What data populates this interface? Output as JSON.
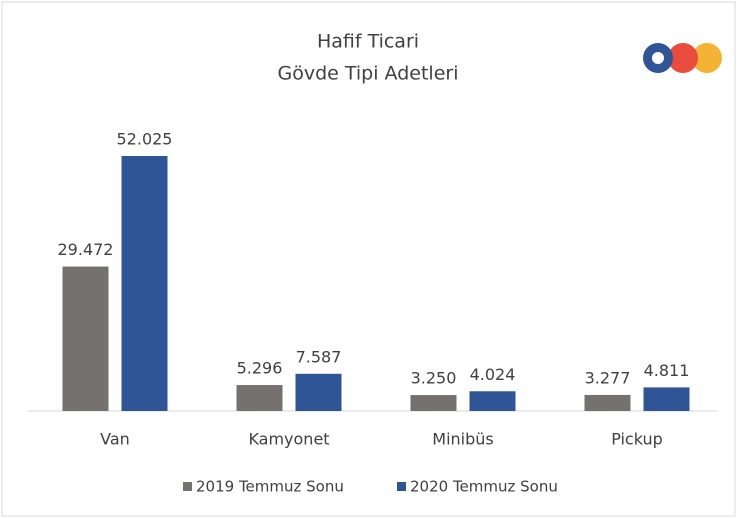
{
  "chart_data": {
    "type": "bar",
    "title": [
      "Hafif Ticari",
      "Gövde Tipi Adetleri"
    ],
    "categories": [
      "Van",
      "Kamyonet",
      "Minibüs",
      "Pickup"
    ],
    "series": [
      {
        "name": "2019 Temmuz Sonu",
        "color": "#767171",
        "values": [
          29472,
          5296,
          3250,
          3277
        ],
        "value_labels": [
          "29.472",
          "5.296",
          "3.250",
          "3.277"
        ]
      },
      {
        "name": "2020 Temmuz Sonu",
        "color": "#2f5597",
        "values": [
          52025,
          7587,
          4024,
          4811
        ],
        "value_labels": [
          "52.025",
          "7.587",
          "4.024",
          "4.811"
        ]
      }
    ]
  }
}
